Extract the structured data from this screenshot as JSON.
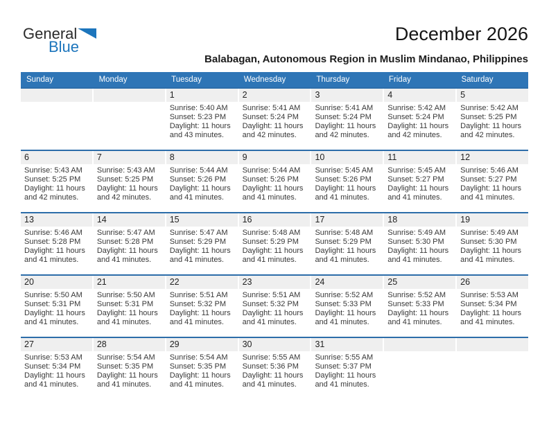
{
  "logo": {
    "part1": "General",
    "part2": "Blue"
  },
  "header": {
    "title": "December 2026",
    "subtitle": "Balabagan, Autonomous Region in Muslim Mindanao, Philippines"
  },
  "colors": {
    "header_blue": "#2E75B6",
    "row_border_blue": "#2C6DA9",
    "band_gray": "#EFEFEF",
    "logo_blue": "#1C75BC"
  },
  "weekdays": [
    "Sunday",
    "Monday",
    "Tuesday",
    "Wednesday",
    "Thursday",
    "Friday",
    "Saturday"
  ],
  "weeks": [
    [
      null,
      null,
      {
        "day": "1",
        "sunrise": "Sunrise: 5:40 AM",
        "sunset": "Sunset: 5:23 PM",
        "daylight1": "Daylight: 11 hours",
        "daylight2": "and 43 minutes."
      },
      {
        "day": "2",
        "sunrise": "Sunrise: 5:41 AM",
        "sunset": "Sunset: 5:24 PM",
        "daylight1": "Daylight: 11 hours",
        "daylight2": "and 42 minutes."
      },
      {
        "day": "3",
        "sunrise": "Sunrise: 5:41 AM",
        "sunset": "Sunset: 5:24 PM",
        "daylight1": "Daylight: 11 hours",
        "daylight2": "and 42 minutes."
      },
      {
        "day": "4",
        "sunrise": "Sunrise: 5:42 AM",
        "sunset": "Sunset: 5:24 PM",
        "daylight1": "Daylight: 11 hours",
        "daylight2": "and 42 minutes."
      },
      {
        "day": "5",
        "sunrise": "Sunrise: 5:42 AM",
        "sunset": "Sunset: 5:25 PM",
        "daylight1": "Daylight: 11 hours",
        "daylight2": "and 42 minutes."
      }
    ],
    [
      {
        "day": "6",
        "sunrise": "Sunrise: 5:43 AM",
        "sunset": "Sunset: 5:25 PM",
        "daylight1": "Daylight: 11 hours",
        "daylight2": "and 42 minutes."
      },
      {
        "day": "7",
        "sunrise": "Sunrise: 5:43 AM",
        "sunset": "Sunset: 5:25 PM",
        "daylight1": "Daylight: 11 hours",
        "daylight2": "and 42 minutes."
      },
      {
        "day": "8",
        "sunrise": "Sunrise: 5:44 AM",
        "sunset": "Sunset: 5:26 PM",
        "daylight1": "Daylight: 11 hours",
        "daylight2": "and 41 minutes."
      },
      {
        "day": "9",
        "sunrise": "Sunrise: 5:44 AM",
        "sunset": "Sunset: 5:26 PM",
        "daylight1": "Daylight: 11 hours",
        "daylight2": "and 41 minutes."
      },
      {
        "day": "10",
        "sunrise": "Sunrise: 5:45 AM",
        "sunset": "Sunset: 5:26 PM",
        "daylight1": "Daylight: 11 hours",
        "daylight2": "and 41 minutes."
      },
      {
        "day": "11",
        "sunrise": "Sunrise: 5:45 AM",
        "sunset": "Sunset: 5:27 PM",
        "daylight1": "Daylight: 11 hours",
        "daylight2": "and 41 minutes."
      },
      {
        "day": "12",
        "sunrise": "Sunrise: 5:46 AM",
        "sunset": "Sunset: 5:27 PM",
        "daylight1": "Daylight: 11 hours",
        "daylight2": "and 41 minutes."
      }
    ],
    [
      {
        "day": "13",
        "sunrise": "Sunrise: 5:46 AM",
        "sunset": "Sunset: 5:28 PM",
        "daylight1": "Daylight: 11 hours",
        "daylight2": "and 41 minutes."
      },
      {
        "day": "14",
        "sunrise": "Sunrise: 5:47 AM",
        "sunset": "Sunset: 5:28 PM",
        "daylight1": "Daylight: 11 hours",
        "daylight2": "and 41 minutes."
      },
      {
        "day": "15",
        "sunrise": "Sunrise: 5:47 AM",
        "sunset": "Sunset: 5:29 PM",
        "daylight1": "Daylight: 11 hours",
        "daylight2": "and 41 minutes."
      },
      {
        "day": "16",
        "sunrise": "Sunrise: 5:48 AM",
        "sunset": "Sunset: 5:29 PM",
        "daylight1": "Daylight: 11 hours",
        "daylight2": "and 41 minutes."
      },
      {
        "day": "17",
        "sunrise": "Sunrise: 5:48 AM",
        "sunset": "Sunset: 5:29 PM",
        "daylight1": "Daylight: 11 hours",
        "daylight2": "and 41 minutes."
      },
      {
        "day": "18",
        "sunrise": "Sunrise: 5:49 AM",
        "sunset": "Sunset: 5:30 PM",
        "daylight1": "Daylight: 11 hours",
        "daylight2": "and 41 minutes."
      },
      {
        "day": "19",
        "sunrise": "Sunrise: 5:49 AM",
        "sunset": "Sunset: 5:30 PM",
        "daylight1": "Daylight: 11 hours",
        "daylight2": "and 41 minutes."
      }
    ],
    [
      {
        "day": "20",
        "sunrise": "Sunrise: 5:50 AM",
        "sunset": "Sunset: 5:31 PM",
        "daylight1": "Daylight: 11 hours",
        "daylight2": "and 41 minutes."
      },
      {
        "day": "21",
        "sunrise": "Sunrise: 5:50 AM",
        "sunset": "Sunset: 5:31 PM",
        "daylight1": "Daylight: 11 hours",
        "daylight2": "and 41 minutes."
      },
      {
        "day": "22",
        "sunrise": "Sunrise: 5:51 AM",
        "sunset": "Sunset: 5:32 PM",
        "daylight1": "Daylight: 11 hours",
        "daylight2": "and 41 minutes."
      },
      {
        "day": "23",
        "sunrise": "Sunrise: 5:51 AM",
        "sunset": "Sunset: 5:32 PM",
        "daylight1": "Daylight: 11 hours",
        "daylight2": "and 41 minutes."
      },
      {
        "day": "24",
        "sunrise": "Sunrise: 5:52 AM",
        "sunset": "Sunset: 5:33 PM",
        "daylight1": "Daylight: 11 hours",
        "daylight2": "and 41 minutes."
      },
      {
        "day": "25",
        "sunrise": "Sunrise: 5:52 AM",
        "sunset": "Sunset: 5:33 PM",
        "daylight1": "Daylight: 11 hours",
        "daylight2": "and 41 minutes."
      },
      {
        "day": "26",
        "sunrise": "Sunrise: 5:53 AM",
        "sunset": "Sunset: 5:34 PM",
        "daylight1": "Daylight: 11 hours",
        "daylight2": "and 41 minutes."
      }
    ],
    [
      {
        "day": "27",
        "sunrise": "Sunrise: 5:53 AM",
        "sunset": "Sunset: 5:34 PM",
        "daylight1": "Daylight: 11 hours",
        "daylight2": "and 41 minutes."
      },
      {
        "day": "28",
        "sunrise": "Sunrise: 5:54 AM",
        "sunset": "Sunset: 5:35 PM",
        "daylight1": "Daylight: 11 hours",
        "daylight2": "and 41 minutes."
      },
      {
        "day": "29",
        "sunrise": "Sunrise: 5:54 AM",
        "sunset": "Sunset: 5:35 PM",
        "daylight1": "Daylight: 11 hours",
        "daylight2": "and 41 minutes."
      },
      {
        "day": "30",
        "sunrise": "Sunrise: 5:55 AM",
        "sunset": "Sunset: 5:36 PM",
        "daylight1": "Daylight: 11 hours",
        "daylight2": "and 41 minutes."
      },
      {
        "day": "31",
        "sunrise": "Sunrise: 5:55 AM",
        "sunset": "Sunset: 5:37 PM",
        "daylight1": "Daylight: 11 hours",
        "daylight2": "and 41 minutes."
      },
      null,
      null
    ]
  ]
}
